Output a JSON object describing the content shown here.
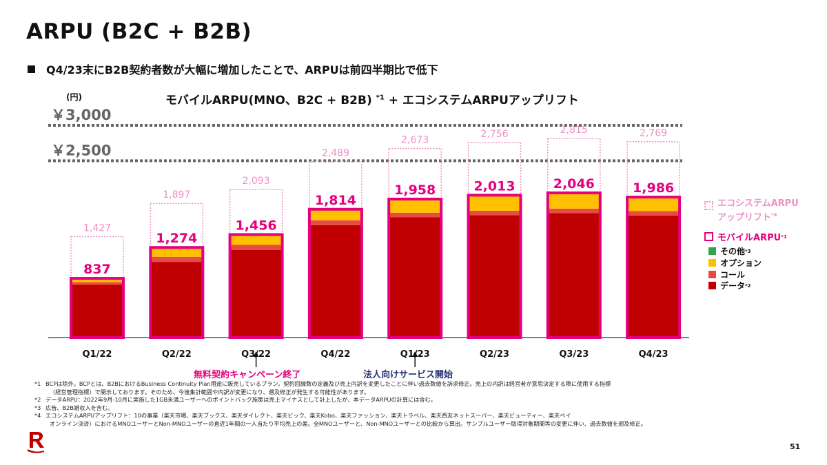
{
  "page": {
    "title": "ARPU (B2C + B2B)",
    "bullet": "Q4/23末にB2B契約者数が大幅に増加したことで、ARPUは前四半期比で低下",
    "page_number": "51"
  },
  "chart_data": {
    "type": "bar",
    "title": "モバイルARPU(MNO、B2C + B2B)",
    "title_note": "*1",
    "title_suffix": " + エコシステムARPUアップリフト",
    "unit": "(円)",
    "reference_lines": [
      {
        "value": 3000,
        "label": "￥3,000"
      },
      {
        "value": 2500,
        "label": "￥2,500"
      }
    ],
    "categories": [
      "Q1/22",
      "Q2/22",
      "Q3/22",
      "Q4/22",
      "Q1/23",
      "Q2/23",
      "Q3/23",
      "Q4/23"
    ],
    "series": [
      {
        "name": "データ",
        "values": [
          745,
          1070,
          1240,
          1590,
          1700,
          1730,
          1760,
          1725
        ]
      },
      {
        "name": "コール",
        "values": [
          38,
          72,
          70,
          68,
          65,
          63,
          63,
          63
        ]
      },
      {
        "name": "オプション",
        "values": [
          54,
          132,
          146,
          156,
          188,
          215,
          213,
          188
        ]
      },
      {
        "name": "その他",
        "values": [
          0,
          0,
          0,
          0,
          5,
          5,
          10,
          10
        ]
      }
    ],
    "mobile_arpu": [
      837,
      1274,
      1456,
      1814,
      1958,
      2013,
      2046,
      1986
    ],
    "ecosystem_total": [
      1427,
      1897,
      2093,
      2489,
      2673,
      2756,
      2815,
      2769
    ],
    "colors": {
      "データ": "#c00000",
      "コール": "#e84b43",
      "オプション": "#ffc000",
      "その他": "#2ea44f",
      "mobile_outline": "#e4007f",
      "ecosystem": "#ef8fc5"
    }
  },
  "legend": {
    "ecosystem_label_1": "エコシステムARPU",
    "ecosystem_label_2": "アップリフト",
    "ecosystem_note": "*4",
    "mobile_label": "モバイルARPU",
    "mobile_note": "*1",
    "other_label": "その他",
    "other_note": "*3",
    "option_label": "オプション",
    "call_label": "コール",
    "data_label": "データ",
    "data_note": "*2"
  },
  "events": {
    "campaign_end": "無料契約キャンペーン終了",
    "b2b_start": "法人向けサービス開始"
  },
  "footnotes": [
    {
      "mark": "*1",
      "text": "BCPは除外。BCPとは、B2BにおけるBusiness Continuity Plan用途に販売しているプラン。契約回線数の定義及び売上内訳を変更したことに伴い過去数値を訴求修正。売上の内訳は経営者が意思決定する際に使用する指標"
    },
    {
      "mark": "",
      "text": "（経営管理指標）で開示しております。そのため、今後集計範囲や内訳が変更になり、遡及修正が発生する可能性があります。"
    },
    {
      "mark": "*2",
      "text": "データARPU：2022年9月-10月に実施した1GB未満ユーザーへのポイントバック施策は売上マイナスとして計上したが、本データARPUの計算には含む。"
    },
    {
      "mark": "*3",
      "text": "広告、B2B雑収入を含む。"
    },
    {
      "mark": "*4",
      "text": "エコシステムARPUアップリフト：10の事業（楽天市場、楽天ブックス、楽天ダイレクト、楽天ビック、楽天Kobo、楽天ファッション、楽天トラベル、楽天西友ネットスーパー、楽天ビューティー、楽天ペイ"
    },
    {
      "mark": "",
      "text": "オンライン決済）におけるMNOユーザーとNon-MNOユーザーの直近1年間の一人当たり平均売上の差。全MNOユーザーと、Non-MNOユーザーとの比較から算出。サンプルユーザー取得対象期間等の変更に伴い、過去数値を遡及修正。"
    }
  ]
}
